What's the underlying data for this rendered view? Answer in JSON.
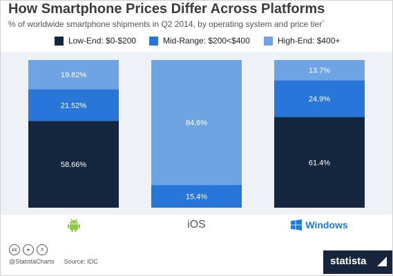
{
  "header": {
    "title": "How Smartphone Prices Differ Across Platforms",
    "subtitle": "% of worldwide smartphone shipments in Q2 2014, by operating system and price tier",
    "subtitle_note": "*"
  },
  "legend": {
    "items": [
      {
        "label": "Low-End: $0-$200",
        "color": "#15273f"
      },
      {
        "label": "Mid-Range: $200<$400",
        "color": "#2876d8"
      },
      {
        "label": "High-End: $400+",
        "color": "#6ea4e4"
      }
    ]
  },
  "chart_data": {
    "type": "bar",
    "stacked": true,
    "categories": [
      "Android",
      "iOS",
      "Windows"
    ],
    "category_display": {
      "android": "android-logo-icon",
      "ios": "iOS",
      "windows": "Windows"
    },
    "series": [
      {
        "name": "Low-End: $0-$200",
        "color": "#15273f",
        "values": [
          58.66,
          0,
          61.4
        ],
        "labels": [
          "58.66%",
          "",
          "61.4%"
        ]
      },
      {
        "name": "Mid-Range: $200<$400",
        "color": "#2876d8",
        "values": [
          21.52,
          15.4,
          24.9
        ],
        "labels": [
          "21.52%",
          "15.4%",
          "24.9%"
        ]
      },
      {
        "name": "High-End: $400+",
        "color": "#6ea4e4",
        "values": [
          19.82,
          84.6,
          13.7
        ],
        "labels": [
          "19.82%",
          "84.6%",
          "13.7%"
        ]
      }
    ],
    "ylim": [
      0,
      100
    ],
    "grid": false,
    "legend_position": "top"
  },
  "footer": {
    "handle": "@StatistaCharts",
    "source": "Source: IDC",
    "brand": "statista",
    "license_icons": [
      "cc-icon",
      "attribution-icon",
      "no-derivatives-icon"
    ]
  }
}
